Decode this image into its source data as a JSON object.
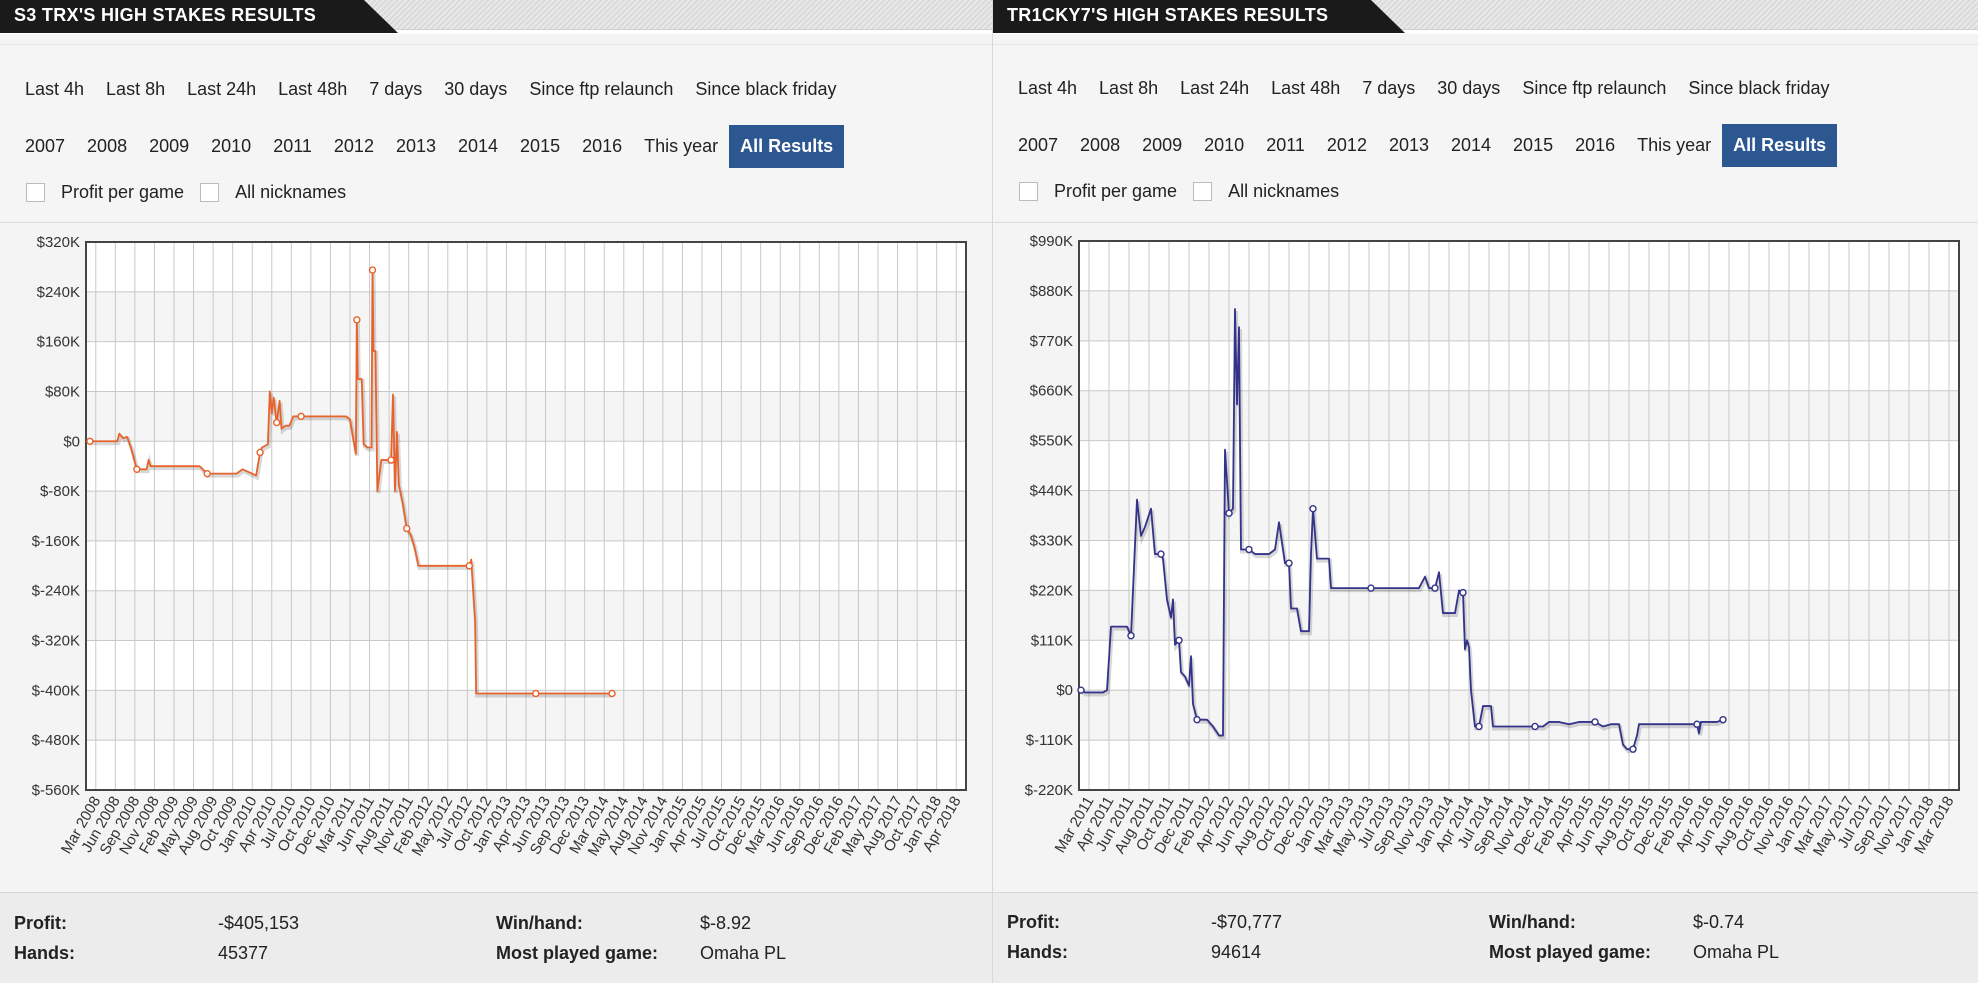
{
  "panels": [
    {
      "title": "S3 TRX'S HIGH STAKES RESULTS",
      "filters_row1": [
        "Last 4h",
        "Last 8h",
        "Last 24h",
        "Last 48h",
        "7 days",
        "30 days",
        "Since ftp relaunch",
        "Since black friday"
      ],
      "filters_row2": [
        "2007",
        "2008",
        "2009",
        "2010",
        "2011",
        "2012",
        "2013",
        "2014",
        "2015",
        "2016",
        "This year",
        "All Results"
      ],
      "active_filter": "All Results",
      "checkboxes": [
        "Profit per game",
        "All nicknames"
      ],
      "stats": {
        "profit_label": "Profit:",
        "profit": "-$405,153",
        "hands_label": "Hands:",
        "hands": "45377",
        "winhand_label": "Win/hand:",
        "winhand": "$-8.92",
        "game_label": "Most played game:",
        "game": "Omaha PL"
      }
    },
    {
      "title": "TR1CKY7'S HIGH STAKES RESULTS",
      "filters_row1": [
        "Last 4h",
        "Last 8h",
        "Last 24h",
        "Last 48h",
        "7 days",
        "30 days",
        "Since ftp relaunch",
        "Since black friday"
      ],
      "filters_row2": [
        "2007",
        "2008",
        "2009",
        "2010",
        "2011",
        "2012",
        "2013",
        "2014",
        "2015",
        "2016",
        "This year",
        "All Results"
      ],
      "active_filter": "All Results",
      "checkboxes": [
        "Profit per game",
        "All nicknames"
      ],
      "stats": {
        "profit_label": "Profit:",
        "profit": "-$70,777",
        "hands_label": "Hands:",
        "hands": "94614",
        "winhand_label": "Win/hand:",
        "winhand": "$-0.74",
        "game_label": "Most played game:",
        "game": "Omaha PL"
      }
    }
  ],
  "chart_data": [
    {
      "type": "line",
      "title": "",
      "xlabel": "",
      "ylabel": "",
      "color": "#e8632b",
      "grid": true,
      "ylim": [
        -560,
        320
      ],
      "y_unit": "thousands of dollars",
      "y_ticks": [
        "$320K",
        "$240K",
        "$160K",
        "$80K",
        "$0",
        "$-80K",
        "$-160K",
        "$-240K",
        "$-320K",
        "$-400K",
        "$-480K",
        "$-560K"
      ],
      "x_ticks": [
        "Mar 2008",
        "Jun 2008",
        "Sep 2008",
        "Nov 2008",
        "Feb 2009",
        "May 2009",
        "Aug 2009",
        "Oct 2009",
        "Jan 2010",
        "Apr 2010",
        "Jul 2010",
        "Oct 2010",
        "Dec 2010",
        "Mar 2011",
        "Jun 2011",
        "Aug 2011",
        "Nov 2011",
        "Feb 2012",
        "May 2012",
        "Jul 2012",
        "Oct 2012",
        "Jan 2013",
        "Apr 2013",
        "Jun 2013",
        "Sep 2013",
        "Dec 2013",
        "Mar 2014",
        "May 2014",
        "Aug 2014",
        "Nov 2014",
        "Jan 2015",
        "Apr 2015",
        "Jul 2015",
        "Oct 2015",
        "Dec 2015",
        "Mar 2016",
        "Jun 2016",
        "Sep 2016",
        "Dec 2016",
        "Feb 2017",
        "May 2017",
        "Aug 2017",
        "Oct 2017",
        "Jan 2018",
        "Apr 2018"
      ],
      "series": [
        {
          "values": [
            [
              0.2,
              0
            ],
            [
              1.6,
              0
            ],
            [
              1.7,
              12
            ],
            [
              1.9,
              5
            ],
            [
              2.1,
              7
            ],
            [
              2.3,
              -10
            ],
            [
              2.6,
              -45
            ],
            [
              3.1,
              -45
            ],
            [
              3.2,
              -30
            ],
            [
              3.3,
              -40
            ],
            [
              5.0,
              -40
            ],
            [
              5.8,
              -40
            ],
            [
              6.2,
              -52
            ],
            [
              6.5,
              -52
            ],
            [
              7.7,
              -52
            ],
            [
              8.0,
              -45
            ],
            [
              8.5,
              -52
            ],
            [
              8.7,
              -55
            ],
            [
              8.9,
              -18
            ],
            [
              9.0,
              -10
            ],
            [
              9.3,
              -5
            ],
            [
              9.4,
              80
            ],
            [
              9.5,
              45
            ],
            [
              9.6,
              70
            ],
            [
              9.75,
              30
            ],
            [
              9.9,
              65
            ],
            [
              10.0,
              20
            ],
            [
              10.2,
              25
            ],
            [
              10.4,
              25
            ],
            [
              10.6,
              40
            ],
            [
              11.0,
              40
            ],
            [
              12.2,
              40
            ],
            [
              12.9,
              40
            ],
            [
              13.3,
              40
            ],
            [
              13.5,
              35
            ],
            [
              13.8,
              -20
            ],
            [
              13.85,
              195
            ],
            [
              13.9,
              100
            ],
            [
              14.1,
              100
            ],
            [
              14.2,
              -5
            ],
            [
              14.4,
              -10
            ],
            [
              14.6,
              -10
            ],
            [
              14.65,
              275
            ],
            [
              14.7,
              145
            ],
            [
              14.8,
              145
            ],
            [
              14.9,
              -80
            ],
            [
              15.1,
              -30
            ],
            [
              15.5,
              -30
            ],
            [
              15.6,
              -30
            ],
            [
              15.7,
              75
            ],
            [
              15.8,
              -80
            ],
            [
              15.9,
              15
            ],
            [
              16.0,
              -70
            ],
            [
              16.2,
              -100
            ],
            [
              16.4,
              -140
            ],
            [
              16.6,
              -150
            ],
            [
              16.8,
              -170
            ],
            [
              17.0,
              -200
            ],
            [
              17.6,
              -200
            ],
            [
              18.8,
              -200
            ],
            [
              19.6,
              -200
            ],
            [
              19.7,
              -190
            ],
            [
              19.9,
              -290
            ],
            [
              19.95,
              -405
            ],
            [
              20.6,
              -405
            ],
            [
              21.8,
              -405
            ],
            [
              23.0,
              -405
            ],
            [
              24.2,
              -405
            ],
            [
              25.4,
              -405
            ],
            [
              26.6,
              -405
            ],
            [
              26.9,
              -405
            ]
          ]
        }
      ]
    },
    {
      "type": "line",
      "title": "",
      "xlabel": "",
      "ylabel": "",
      "color": "#33338a",
      "grid": true,
      "ylim": [
        -220,
        990
      ],
      "y_unit": "thousands of dollars",
      "y_ticks": [
        "$990K",
        "$880K",
        "$770K",
        "$660K",
        "$550K",
        "$440K",
        "$330K",
        "$220K",
        "$110K",
        "$0",
        "$-110K",
        "$-220K"
      ],
      "x_ticks": [
        "Mar 2011",
        "Apr 2011",
        "Jun 2011",
        "Aug 2011",
        "Oct 2011",
        "Dec 2011",
        "Feb 2012",
        "Apr 2012",
        "Jun 2012",
        "Aug 2012",
        "Oct 2012",
        "Dec 2012",
        "Jan 2013",
        "Mar 2013",
        "May 2013",
        "Jul 2013",
        "Sep 2013",
        "Nov 2013",
        "Jan 2014",
        "Apr 2014",
        "Jul 2014",
        "Sep 2014",
        "Nov 2014",
        "Dec 2014",
        "Feb 2015",
        "Apr 2015",
        "Jun 2015",
        "Aug 2015",
        "Oct 2015",
        "Dec 2015",
        "Feb 2016",
        "Apr 2016",
        "Jun 2016",
        "Aug 2016",
        "Oct 2016",
        "Nov 2016",
        "Jan 2017",
        "Mar 2017",
        "May 2017",
        "Jul 2017",
        "Sep 2017",
        "Nov 2017",
        "Jan 2018",
        "Mar 2018"
      ],
      "series": [
        {
          "values": [
            [
              0.1,
              0
            ],
            [
              0.3,
              -5
            ],
            [
              1.2,
              -5
            ],
            [
              1.4,
              0
            ],
            [
              1.6,
              140
            ],
            [
              2.4,
              140
            ],
            [
              2.6,
              120
            ],
            [
              2.9,
              420
            ],
            [
              3.1,
              340
            ],
            [
              3.3,
              360
            ],
            [
              3.6,
              400
            ],
            [
              3.8,
              300
            ],
            [
              4.1,
              300
            ],
            [
              4.2,
              290
            ],
            [
              4.4,
              200
            ],
            [
              4.6,
              160
            ],
            [
              4.7,
              200
            ],
            [
              4.8,
              100
            ],
            [
              5.0,
              110
            ],
            [
              5.1,
              40
            ],
            [
              5.3,
              30
            ],
            [
              5.5,
              10
            ],
            [
              5.6,
              75
            ],
            [
              5.7,
              -30
            ],
            [
              5.9,
              -65
            ],
            [
              6.4,
              -65
            ],
            [
              6.7,
              -80
            ],
            [
              7.0,
              -100
            ],
            [
              7.2,
              -100
            ],
            [
              7.3,
              530
            ],
            [
              7.5,
              390
            ],
            [
              7.7,
              400
            ],
            [
              7.8,
              840
            ],
            [
              7.9,
              630
            ],
            [
              8.0,
              800
            ],
            [
              8.1,
              310
            ],
            [
              8.5,
              310
            ],
            [
              8.8,
              300
            ],
            [
              9.5,
              300
            ],
            [
              9.8,
              310
            ],
            [
              10.0,
              370
            ],
            [
              10.3,
              280
            ],
            [
              10.5,
              280
            ],
            [
              10.6,
              180
            ],
            [
              10.9,
              180
            ],
            [
              11.1,
              130
            ],
            [
              11.5,
              130
            ],
            [
              11.6,
              300
            ],
            [
              11.7,
              400
            ],
            [
              11.9,
              290
            ],
            [
              12.3,
              290
            ],
            [
              12.5,
              290
            ],
            [
              12.6,
              225
            ],
            [
              13.6,
              225
            ],
            [
              14.6,
              225
            ],
            [
              15.6,
              225
            ],
            [
              16.5,
              225
            ],
            [
              17.0,
              225
            ],
            [
              17.3,
              250
            ],
            [
              17.5,
              225
            ],
            [
              17.8,
              225
            ],
            [
              18.0,
              260
            ],
            [
              18.2,
              170
            ],
            [
              18.5,
              170
            ],
            [
              18.8,
              170
            ],
            [
              19.0,
              220
            ],
            [
              19.2,
              215
            ],
            [
              19.3,
              90
            ],
            [
              19.4,
              110
            ],
            [
              19.5,
              95
            ],
            [
              19.6,
              0
            ],
            [
              19.8,
              -80
            ],
            [
              20.0,
              -80
            ],
            [
              20.2,
              -35
            ],
            [
              20.6,
              -35
            ],
            [
              20.7,
              -80
            ],
            [
              21.1,
              -80
            ],
            [
              22.1,
              -80
            ],
            [
              22.8,
              -80
            ],
            [
              23.2,
              -80
            ],
            [
              23.5,
              -70
            ],
            [
              24.0,
              -70
            ],
            [
              24.5,
              -75
            ],
            [
              25.0,
              -70
            ],
            [
              25.8,
              -70
            ],
            [
              26.2,
              -80
            ],
            [
              26.6,
              -75
            ],
            [
              27.0,
              -75
            ],
            [
              27.2,
              -120
            ],
            [
              27.4,
              -130
            ],
            [
              27.7,
              -130
            ],
            [
              27.9,
              -100
            ],
            [
              28.0,
              -75
            ],
            [
              28.6,
              -75
            ],
            [
              29.5,
              -75
            ],
            [
              30.5,
              -75
            ],
            [
              30.9,
              -75
            ],
            [
              31.0,
              -95
            ],
            [
              31.1,
              -70
            ],
            [
              31.6,
              -70
            ],
            [
              31.9,
              -70
            ],
            [
              32.2,
              -65
            ]
          ]
        }
      ]
    }
  ]
}
